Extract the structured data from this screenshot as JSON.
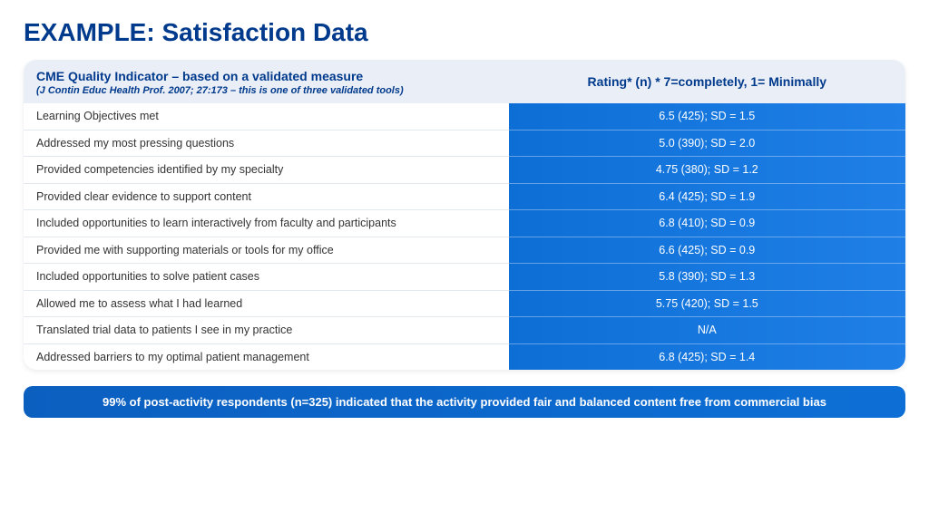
{
  "title": "EXAMPLE: Satisfaction Data",
  "colors": {
    "title": "#003a8c",
    "header_bg": "#eaeef7",
    "row_left_bg": "#ffffff",
    "row_right_bg": "#0d6fd6",
    "row_right_bg_light": "#1f7fe6",
    "footer_bg_left": "#0b5fbf",
    "footer_bg_right": "#0d6fd6",
    "white": "#ffffff"
  },
  "table": {
    "header_left_title": "CME Quality Indicator – based on a validated measure",
    "header_left_sub": "(J Contin Educ Health Prof. 2007; 27:173 – this is one of three validated tools)",
    "header_right": "Rating*  (n) * 7=completely, 1= Minimally",
    "rows": [
      {
        "label": "Learning Objectives met",
        "value": "6.5 (425); SD = 1.5"
      },
      {
        "label": "Addressed my most pressing questions",
        "value": "5.0 (390); SD = 2.0"
      },
      {
        "label": "Provided competencies identified by my specialty",
        "value": "4.75 (380); SD = 1.2"
      },
      {
        "label": "Provided clear evidence to support content",
        "value": "6.4 (425); SD = 1.9"
      },
      {
        "label": "Included opportunities to learn interactively from faculty and participants",
        "value": "6.8 (410); SD = 0.9"
      },
      {
        "label": "Provided me with supporting materials or tools for my office",
        "value": "6.6 (425); SD = 0.9"
      },
      {
        "label": "Included opportunities to solve patient cases",
        "value": "5.8 (390); SD = 1.3"
      },
      {
        "label": "Allowed me to assess what I had learned",
        "value": "5.75 (420); SD = 1.5"
      },
      {
        "label": "Translated trial data to patients I see in my practice",
        "value": "N/A"
      },
      {
        "label": "Addressed barriers to my optimal patient management",
        "value": "6.8 (425); SD = 1.4"
      }
    ]
  },
  "footer": "99% of post-activity respondents (n=325) indicated that the activity provided fair and balanced content free from commercial bias"
}
